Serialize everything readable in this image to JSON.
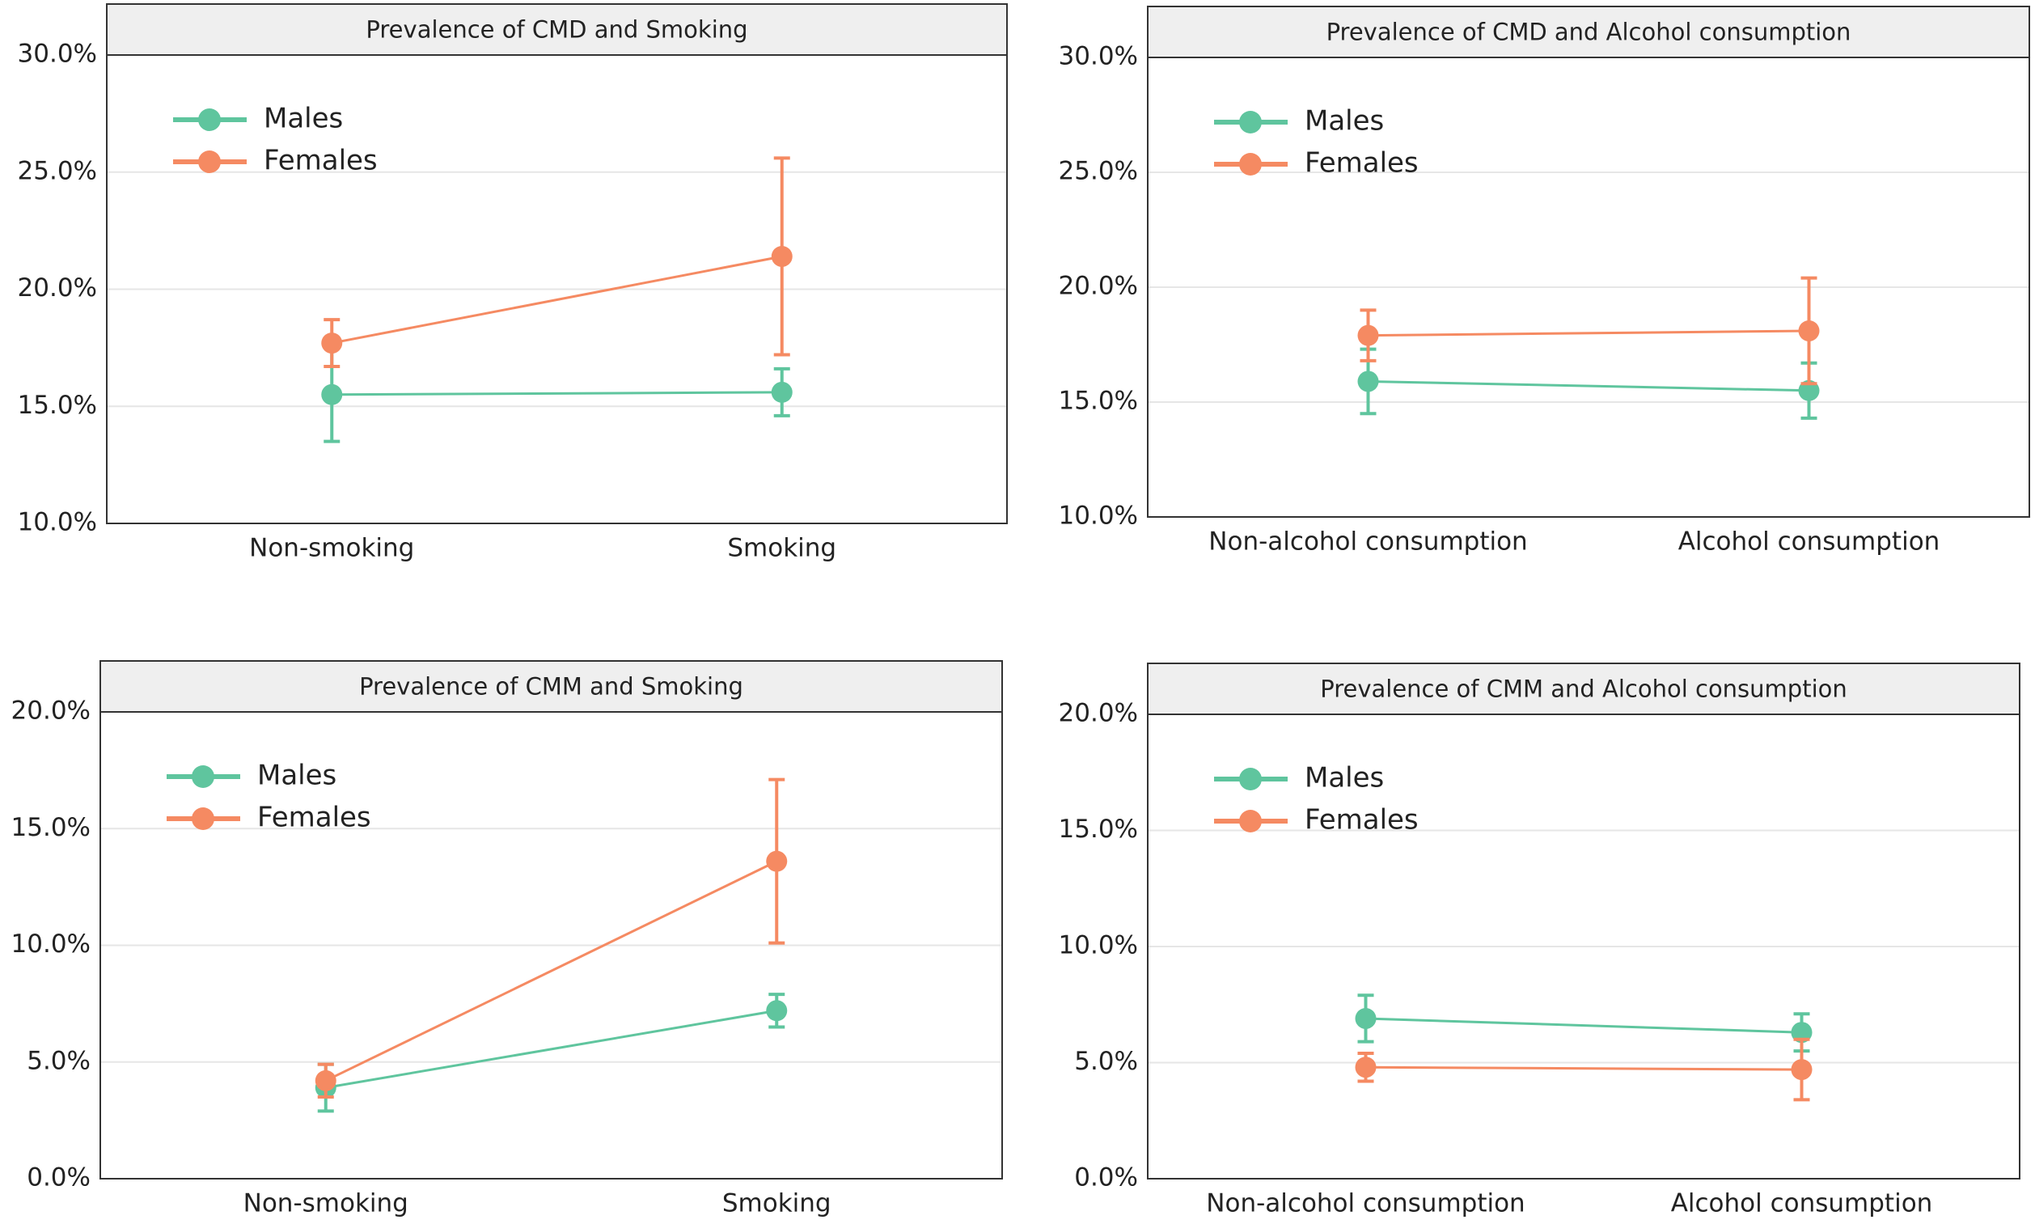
{
  "chart_data": [
    {
      "type": "line",
      "title": "Prevalence of CMD and Smoking",
      "categories": [
        "Non-smoking",
        "Smoking"
      ],
      "series": [
        {
          "name": "Males",
          "color": "#5fc59e",
          "values": [
            15.5,
            15.6
          ],
          "errors": [
            2.0,
            1.0
          ]
        },
        {
          "name": "Females",
          "color": "#f58a62",
          "values": [
            17.7,
            21.4
          ],
          "errors": [
            1.0,
            4.2
          ]
        }
      ],
      "ylim": [
        10,
        30
      ],
      "yticks": [
        {
          "value": 10,
          "label": "10.0%"
        },
        {
          "value": 15,
          "label": "15.0%"
        },
        {
          "value": 20,
          "label": "20.0%"
        },
        {
          "value": 25,
          "label": "25.0%"
        },
        {
          "value": 30,
          "label": "30.0%"
        }
      ],
      "grid": true,
      "legend": "upper left"
    },
    {
      "type": "line",
      "title": "Prevalence of CMD and Alcohol consumption",
      "categories": [
        "Non-alcohol consumption",
        "Alcohol consumption"
      ],
      "series": [
        {
          "name": "Males",
          "color": "#5fc59e",
          "values": [
            15.9,
            15.5
          ],
          "errors": [
            1.4,
            1.2
          ]
        },
        {
          "name": "Females",
          "color": "#f58a62",
          "values": [
            17.9,
            18.1
          ],
          "errors": [
            1.1,
            2.3
          ]
        }
      ],
      "ylim": [
        10,
        30
      ],
      "yticks": [
        {
          "value": 10,
          "label": "10.0%"
        },
        {
          "value": 15,
          "label": "15.0%"
        },
        {
          "value": 20,
          "label": "20.0%"
        },
        {
          "value": 25,
          "label": "25.0%"
        },
        {
          "value": 30,
          "label": "30.0%"
        }
      ],
      "grid": true,
      "legend": "upper left"
    },
    {
      "type": "line",
      "title": "Prevalence of CMM and Smoking",
      "categories": [
        "Non-smoking",
        "Smoking"
      ],
      "series": [
        {
          "name": "Males",
          "color": "#5fc59e",
          "values": [
            3.9,
            7.2
          ],
          "errors": [
            1.0,
            0.7
          ]
        },
        {
          "name": "Females",
          "color": "#f58a62",
          "values": [
            4.2,
            13.6
          ],
          "errors": [
            0.7,
            3.5
          ]
        }
      ],
      "ylim": [
        0,
        20
      ],
      "yticks": [
        {
          "value": 0,
          "label": "0.0%"
        },
        {
          "value": 5,
          "label": "5.0%"
        },
        {
          "value": 10,
          "label": "10.0%"
        },
        {
          "value": 15,
          "label": "15.0%"
        },
        {
          "value": 20,
          "label": "20.0%"
        }
      ],
      "grid": true,
      "legend": "upper left"
    },
    {
      "type": "line",
      "title": "Prevalence of CMM and Alcohol consumption",
      "categories": [
        "Non-alcohol consumption",
        "Alcohol consumption"
      ],
      "series": [
        {
          "name": "Males",
          "color": "#5fc59e",
          "values": [
            6.9,
            6.3
          ],
          "errors": [
            1.0,
            0.8
          ]
        },
        {
          "name": "Females",
          "color": "#f58a62",
          "values": [
            4.8,
            4.7
          ],
          "errors": [
            0.6,
            1.3
          ]
        }
      ],
      "ylim": [
        0,
        20
      ],
      "yticks": [
        {
          "value": 0,
          "label": "0.0%"
        },
        {
          "value": 5,
          "label": "5.0%"
        },
        {
          "value": 10,
          "label": "10.0%"
        },
        {
          "value": 15,
          "label": "15.0%"
        },
        {
          "value": 20,
          "label": "20.0%"
        }
      ],
      "grid": true,
      "legend": "upper left"
    }
  ]
}
